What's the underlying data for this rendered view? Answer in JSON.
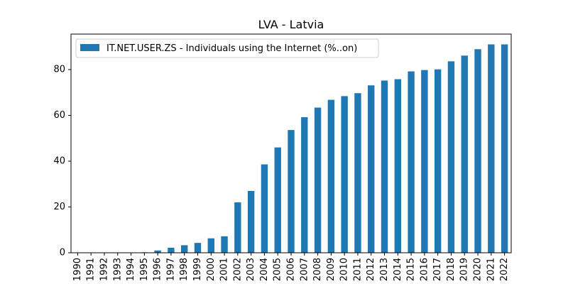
{
  "chart_data": {
    "type": "bar",
    "title": "LVA - Latvia",
    "xlabel": "",
    "ylabel": "",
    "categories": [
      "1990",
      "1991",
      "1992",
      "1993",
      "1994",
      "1995",
      "1996",
      "1997",
      "1998",
      "1999",
      "2000",
      "2001",
      "2002",
      "2003",
      "2004",
      "2005",
      "2006",
      "2007",
      "2008",
      "2009",
      "2010",
      "2011",
      "2012",
      "2013",
      "2014",
      "2015",
      "2016",
      "2017",
      "2018",
      "2019",
      "2020",
      "2021",
      "2022"
    ],
    "series": [
      {
        "name": "IT.NET.USER.ZS - Individuals using the Internet (%..on)",
        "color": "#1f77b4",
        "values": [
          0,
          0,
          0,
          0,
          0.1,
          0.2,
          1.0,
          2.2,
          3.3,
          4.3,
          6.3,
          7.2,
          22.0,
          27.0,
          38.6,
          46.0,
          53.6,
          59.2,
          63.4,
          66.8,
          68.4,
          69.7,
          73.1,
          75.2,
          75.8,
          79.2,
          79.8,
          80.1,
          83.6,
          86.1,
          88.9,
          91.0,
          91.0
        ]
      }
    ],
    "ylim": [
      0,
      95.5
    ],
    "yticks": [
      0,
      20,
      40,
      60,
      80
    ],
    "grid": false,
    "legend_position": "upper-left"
  }
}
